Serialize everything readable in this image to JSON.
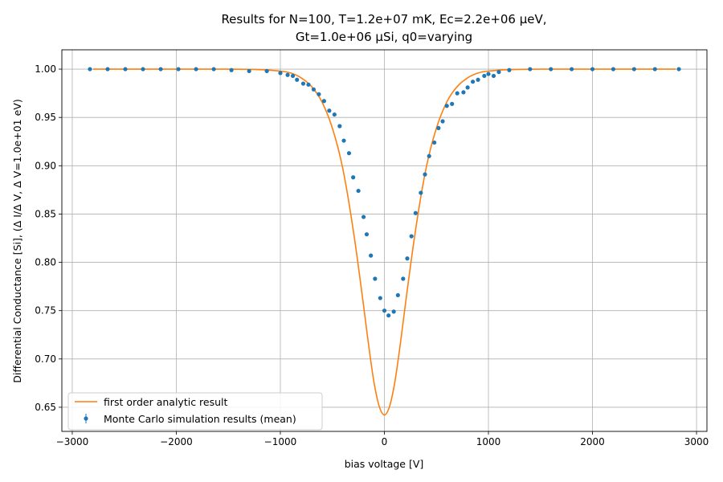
{
  "chart_data": {
    "type": "scatter",
    "title_line1": "Results for N=100, T=1.2e+07 mK, Ec=2.2e+06 μeV,",
    "title_line2": "Gt=1.0e+06 μSi, q0=varying",
    "xlabel": "bias voltage [V]",
    "ylabel": "Differential Conductance [Si], (Δ I/Δ V, Δ V=1.0e+01 eV)",
    "xlim": [
      -3100,
      3100
    ],
    "ylim": [
      0.625,
      1.02
    ],
    "xticks": [
      -3000,
      -2000,
      -1000,
      0,
      1000,
      2000,
      3000
    ],
    "xtick_labels": [
      "−3000",
      "−2000",
      "−1000",
      "0",
      "1000",
      "2000",
      "3000"
    ],
    "yticks": [
      0.65,
      0.7,
      0.75,
      0.8,
      0.85,
      0.9,
      0.95,
      1.0
    ],
    "ytick_labels": [
      "0.65",
      "0.70",
      "0.75",
      "0.80",
      "0.85",
      "0.90",
      "0.95",
      "1.00"
    ],
    "grid": true,
    "legend_position": "lower-left",
    "colors": {
      "analytic": "#ff7f0e",
      "simulation": "#1f77b4",
      "grid": "#b0b0b0"
    },
    "series": [
      {
        "name": "first order analytic result",
        "kind": "line",
        "x": [
          -2800,
          -2000,
          -1500,
          -1200,
          -1000,
          -900,
          -800,
          -700,
          -600,
          -500,
          -400,
          -300,
          -200,
          -150,
          -100,
          -50,
          0,
          50,
          100,
          150,
          200,
          300,
          400,
          500,
          600,
          700,
          800,
          900,
          1000,
          1200,
          1500,
          2000,
          2800
        ],
        "y": [
          1.0,
          1.0,
          1.0,
          0.9995,
          0.998,
          0.996,
          0.991,
          0.982,
          0.966,
          0.939,
          0.897,
          0.834,
          0.755,
          0.713,
          0.676,
          0.651,
          0.642,
          0.651,
          0.676,
          0.713,
          0.755,
          0.834,
          0.897,
          0.939,
          0.966,
          0.982,
          0.991,
          0.996,
          0.998,
          0.9995,
          1.0,
          1.0,
          1.0
        ]
      },
      {
        "name": "Monte Carlo simulation results (mean)",
        "kind": "points",
        "x": [
          -2830,
          -2660,
          -2490,
          -2320,
          -2150,
          -1980,
          -1810,
          -1640,
          -1470,
          -1300,
          -1130,
          -1000,
          -930,
          -880,
          -840,
          -780,
          -730,
          -680,
          -630,
          -580,
          -530,
          -480,
          -430,
          -390,
          -340,
          -300,
          -250,
          -200,
          -170,
          -130,
          -90,
          -40,
          0,
          40,
          90,
          130,
          180,
          220,
          260,
          300,
          350,
          390,
          430,
          480,
          520,
          560,
          600,
          650,
          700,
          760,
          800,
          850,
          900,
          960,
          1000,
          1050,
          1100,
          1200,
          1400,
          1600,
          1800,
          2000,
          2200,
          2400,
          2600,
          2830
        ],
        "y": [
          1.0,
          1.0,
          1.0,
          1.0,
          1.0,
          1.0,
          1.0,
          1.0,
          0.999,
          0.998,
          0.998,
          0.996,
          0.994,
          0.993,
          0.989,
          0.985,
          0.984,
          0.979,
          0.974,
          0.967,
          0.957,
          0.953,
          0.941,
          0.926,
          0.913,
          0.888,
          0.874,
          0.847,
          0.829,
          0.807,
          0.783,
          0.763,
          0.75,
          0.745,
          0.749,
          0.766,
          0.783,
          0.804,
          0.827,
          0.851,
          0.872,
          0.891,
          0.91,
          0.924,
          0.939,
          0.946,
          0.962,
          0.964,
          0.975,
          0.976,
          0.981,
          0.987,
          0.989,
          0.993,
          0.995,
          0.993,
          0.997,
          0.999,
          1.0,
          1.0,
          1.0,
          1.0,
          1.0,
          1.0,
          1.0,
          1.0
        ]
      }
    ]
  }
}
